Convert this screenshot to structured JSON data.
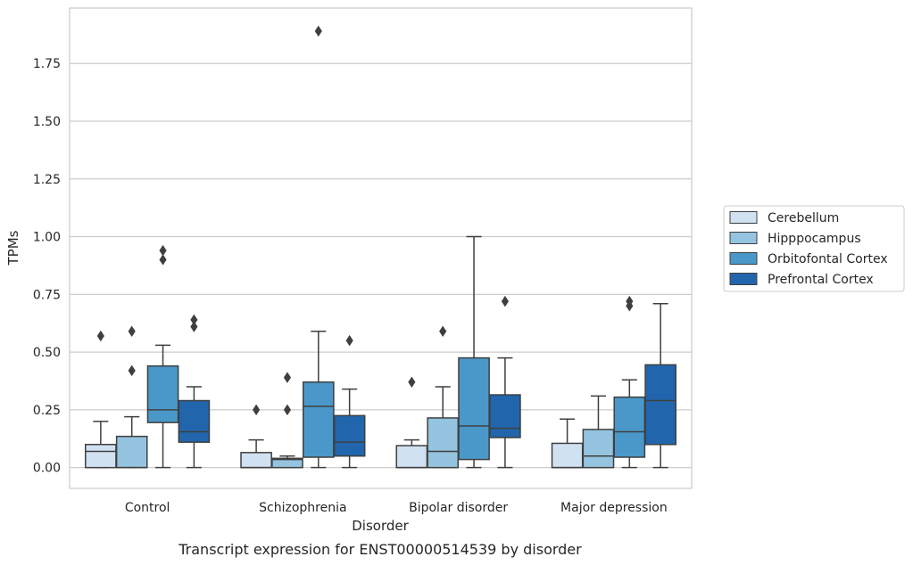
{
  "chart_data": {
    "type": "box",
    "caption": "Transcript expression for ENST00000514539 by disorder",
    "xlabel": "Disorder",
    "ylabel": "TPMs",
    "ylim": [
      -0.09,
      1.99
    ],
    "yticks": [
      0.0,
      0.25,
      0.5,
      0.75,
      1.0,
      1.25,
      1.5,
      1.75
    ],
    "ytick_labels": [
      "0.00",
      "0.25",
      "0.50",
      "0.75",
      "1.00",
      "1.25",
      "1.50",
      "1.75"
    ],
    "grid": "horizontal",
    "legend_position": "right",
    "categories": [
      "Control",
      "Schizophrenia",
      "Bipolar disorder",
      "Major depression"
    ],
    "series": [
      {
        "name": "Cerebellum",
        "color": "#d0e1f2",
        "boxes": [
          {
            "whislo": 0.0,
            "q1": 0.0,
            "med": 0.07,
            "q3": 0.1,
            "whishi": 0.2,
            "fliers": [
              0.57
            ]
          },
          {
            "whislo": 0.0,
            "q1": 0.0,
            "med": 0.0,
            "q3": 0.065,
            "whishi": 0.12,
            "fliers": [
              0.25
            ]
          },
          {
            "whislo": 0.0,
            "q1": 0.0,
            "med": 0.0,
            "q3": 0.095,
            "whishi": 0.12,
            "fliers": [
              0.37
            ]
          },
          {
            "whislo": 0.0,
            "q1": 0.0,
            "med": 0.0,
            "q3": 0.105,
            "whishi": 0.21,
            "fliers": []
          }
        ]
      },
      {
        "name": "Hipppocampus",
        "color": "#94c4df",
        "boxes": [
          {
            "whislo": 0.0,
            "q1": 0.0,
            "med": 0.0,
            "q3": 0.135,
            "whishi": 0.22,
            "fliers": [
              0.42,
              0.59
            ]
          },
          {
            "whislo": 0.0,
            "q1": 0.0,
            "med": 0.035,
            "q3": 0.04,
            "whishi": 0.05,
            "fliers": [
              0.25,
              0.39
            ]
          },
          {
            "whislo": 0.0,
            "q1": 0.0,
            "med": 0.07,
            "q3": 0.215,
            "whishi": 0.35,
            "fliers": [
              0.59
            ]
          },
          {
            "whislo": 0.0,
            "q1": 0.0,
            "med": 0.05,
            "q3": 0.165,
            "whishi": 0.31,
            "fliers": []
          }
        ]
      },
      {
        "name": "Orbitofontal Cortex",
        "color": "#4a98c9",
        "boxes": [
          {
            "whislo": 0.0,
            "q1": 0.195,
            "med": 0.25,
            "q3": 0.44,
            "whishi": 0.53,
            "fliers": [
              0.9,
              0.94
            ]
          },
          {
            "whislo": 0.0,
            "q1": 0.045,
            "med": 0.265,
            "q3": 0.37,
            "whishi": 0.59,
            "fliers": [
              1.89
            ]
          },
          {
            "whislo": 0.0,
            "q1": 0.035,
            "med": 0.18,
            "q3": 0.475,
            "whishi": 1.0,
            "fliers": []
          },
          {
            "whislo": 0.0,
            "q1": 0.045,
            "med": 0.155,
            "q3": 0.305,
            "whishi": 0.38,
            "fliers": [
              0.7,
              0.72
            ]
          }
        ]
      },
      {
        "name": "Prefrontal Cortex",
        "color": "#2166ac",
        "boxes": [
          {
            "whislo": 0.0,
            "q1": 0.11,
            "med": 0.155,
            "q3": 0.29,
            "whishi": 0.35,
            "fliers": [
              0.61,
              0.64
            ]
          },
          {
            "whislo": 0.0,
            "q1": 0.05,
            "med": 0.11,
            "q3": 0.225,
            "whishi": 0.34,
            "fliers": [
              0.55
            ]
          },
          {
            "whislo": 0.0,
            "q1": 0.13,
            "med": 0.17,
            "q3": 0.315,
            "whishi": 0.475,
            "fliers": [
              0.72
            ]
          },
          {
            "whislo": 0.0,
            "q1": 0.1,
            "med": 0.29,
            "q3": 0.445,
            "whishi": 0.71,
            "fliers": []
          }
        ]
      }
    ]
  }
}
